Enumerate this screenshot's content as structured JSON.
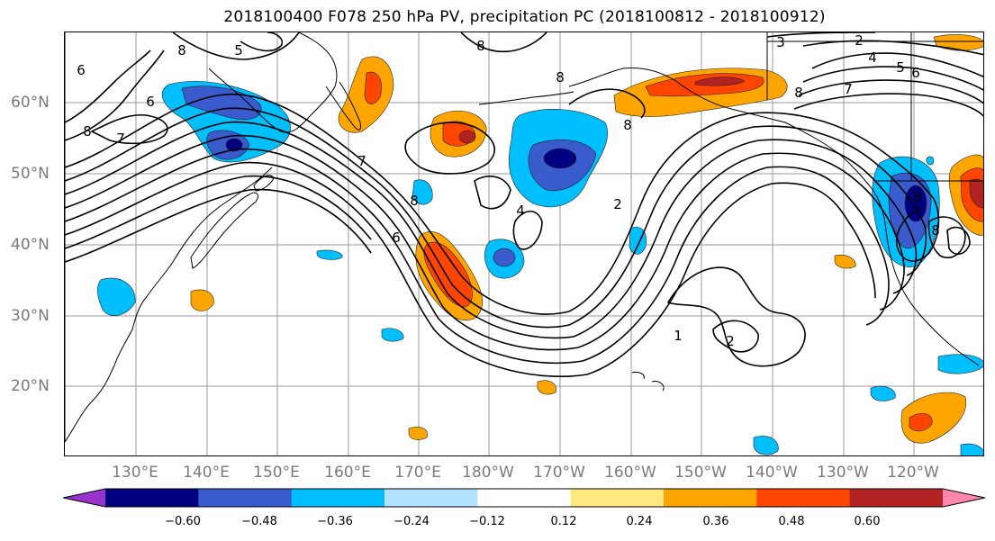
{
  "title": "2018100400 F078 250 hPa PV, precipitation PC (2018100812 - 2018100912)",
  "lat_labels": [
    "60°N",
    "50°N",
    "40°N",
    "30°N",
    "20°N"
  ],
  "lon_labels": [
    "130°E",
    "140°E",
    "150°E",
    "160°E",
    "170°E",
    "180°W",
    "170°W",
    "160°W",
    "150°W",
    "140°W",
    "130°W",
    "120°W"
  ],
  "contour_labels": [
    "6",
    "8",
    "5",
    "6",
    "8",
    "7",
    "8",
    "8",
    "3",
    "2",
    "4",
    "5",
    "6",
    "7",
    "8",
    "8",
    "7",
    "6",
    "4",
    "2",
    "8",
    "1",
    "2",
    "8",
    "8"
  ],
  "colorbar": {
    "ticks": [
      "−0.60",
      "−0.48",
      "−0.36",
      "−0.24",
      "−0.12",
      "0.12",
      "0.24",
      "0.36",
      "0.48",
      "0.60"
    ],
    "colors": [
      "#9933cc",
      "#000080",
      "#3a5bcc",
      "#00bfff",
      "#b3e3ff",
      "#ffffff",
      "#ffe97f",
      "#ffa500",
      "#ff4500",
      "#b22222",
      "#ff88aa"
    ]
  },
  "colors": {
    "contour": "#000000",
    "grid": "#9a9a9a",
    "axis_label": "#7a7a7a"
  }
}
